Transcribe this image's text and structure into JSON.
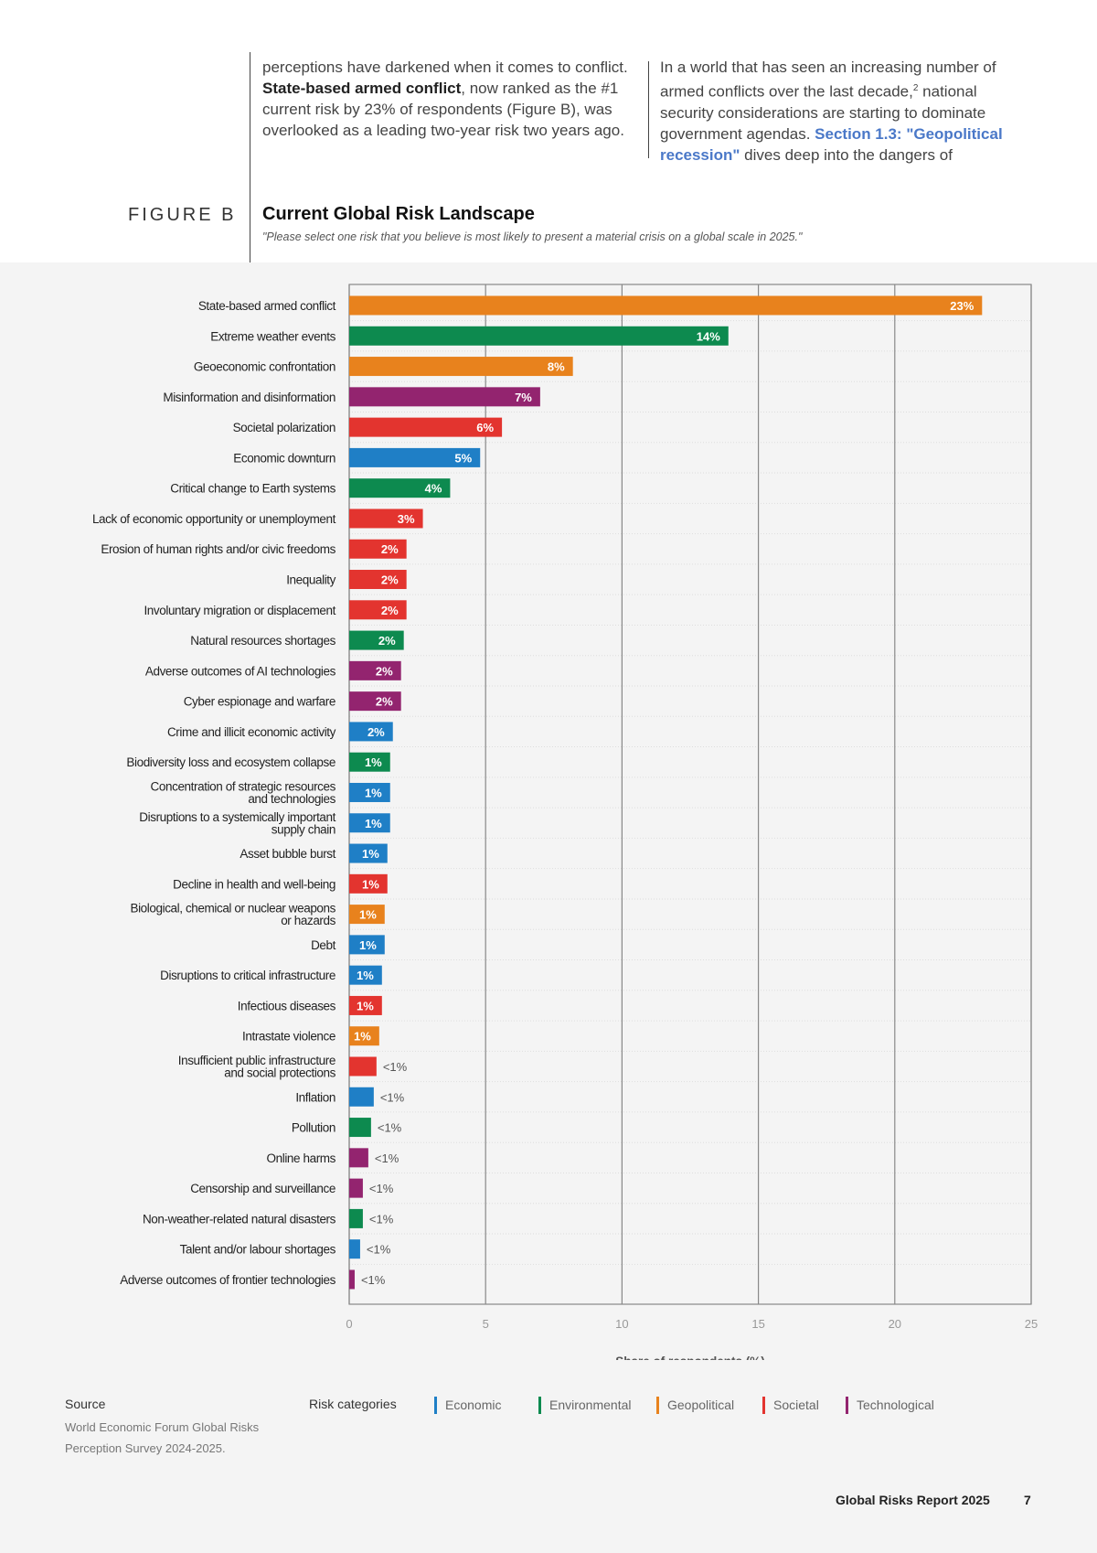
{
  "intro": {
    "left_pre": "perceptions have darkened when it comes to conflict. ",
    "left_bold": "State-based armed conflict",
    "left_post": ", now ranked as the #1 current risk by 23% of respondents (Figure B), was overlooked as a leading two-year risk two years ago.",
    "right_pre": "In a world that has seen an increasing number of armed conflicts over the last decade,",
    "right_sup": "2",
    "right_mid": " national security considerations are starting to dominate government agendas. ",
    "right_link": "Section 1.3: \"Geopolitical recession\"",
    "right_post": " dives deep into the dangers of"
  },
  "figure": {
    "label": "FIGURE B",
    "title": "Current Global Risk Landscape",
    "question": "\"Please select one risk that you believe is most likely to present a material crisis on a global scale in 2025.\""
  },
  "colors": {
    "Economic": "#1f7fc6",
    "Environmental": "#0d8a4f",
    "Geopolitical": "#e8821d",
    "Societal": "#e3342f",
    "Technological": "#93246f"
  },
  "chart_data": {
    "type": "bar",
    "orientation": "horizontal",
    "xlabel": "Share of respondents (%)",
    "xlim": [
      0,
      25
    ],
    "xticks": [
      0,
      5,
      10,
      15,
      20,
      25
    ],
    "grid": true,
    "categories": [
      [
        "State-based armed conflict"
      ],
      [
        "Extreme weather events"
      ],
      [
        "Geoeconomic confrontation"
      ],
      [
        "Misinformation and disinformation"
      ],
      [
        "Societal polarization"
      ],
      [
        "Economic downturn"
      ],
      [
        "Critical change to Earth systems"
      ],
      [
        "Lack of economic opportunity or unemployment"
      ],
      [
        "Erosion of human rights and/or civic freedoms"
      ],
      [
        "Inequality"
      ],
      [
        "Involuntary migration or displacement"
      ],
      [
        "Natural resources shortages"
      ],
      [
        "Adverse outcomes of AI technologies"
      ],
      [
        "Cyber espionage and warfare"
      ],
      [
        "Crime and illicit economic activity"
      ],
      [
        "Biodiversity loss and ecosystem collapse"
      ],
      [
        "Concentration of strategic resources",
        "and technologies"
      ],
      [
        "Disruptions to a systemically important",
        "supply chain"
      ],
      [
        "Asset bubble burst"
      ],
      [
        "Decline in health and well-being"
      ],
      [
        "Biological, chemical or nuclear weapons",
        "or hazards"
      ],
      [
        "Debt"
      ],
      [
        "Disruptions to critical infrastructure"
      ],
      [
        "Infectious diseases"
      ],
      [
        "Intrastate violence"
      ],
      [
        "Insufficient public infrastructure",
        "and social protections"
      ],
      [
        "Inflation"
      ],
      [
        "Pollution"
      ],
      [
        "Online harms"
      ],
      [
        "Censorship and surveillance"
      ],
      [
        "Non-weather-related natural disasters"
      ],
      [
        "Talent and/or labour shortages"
      ],
      [
        "Adverse outcomes of frontier technologies"
      ]
    ],
    "values": [
      23.2,
      13.9,
      8.2,
      7.0,
      5.6,
      4.8,
      3.7,
      2.7,
      2.1,
      2.1,
      2.1,
      2.0,
      1.9,
      1.9,
      1.6,
      1.5,
      1.5,
      1.5,
      1.4,
      1.4,
      1.3,
      1.3,
      1.2,
      1.2,
      1.1,
      1.0,
      0.9,
      0.8,
      0.7,
      0.5,
      0.5,
      0.4,
      0.2
    ],
    "labels": [
      "23%",
      "14%",
      "8%",
      "7%",
      "6%",
      "5%",
      "4%",
      "3%",
      "2%",
      "2%",
      "2%",
      "2%",
      "2%",
      "2%",
      "2%",
      "1%",
      "1%",
      "1%",
      "1%",
      "1%",
      "1%",
      "1%",
      "1%",
      "1%",
      "1%",
      "<1%",
      "<1%",
      "<1%",
      "<1%",
      "<1%",
      "<1%",
      "<1%",
      "<1%"
    ],
    "category_type": [
      "Geopolitical",
      "Environmental",
      "Geopolitical",
      "Technological",
      "Societal",
      "Economic",
      "Environmental",
      "Societal",
      "Societal",
      "Societal",
      "Societal",
      "Environmental",
      "Technological",
      "Technological",
      "Economic",
      "Environmental",
      "Economic",
      "Economic",
      "Economic",
      "Societal",
      "Geopolitical",
      "Economic",
      "Economic",
      "Societal",
      "Geopolitical",
      "Societal",
      "Economic",
      "Environmental",
      "Technological",
      "Technological",
      "Environmental",
      "Economic",
      "Technological"
    ],
    "legend_title": "Risk categories",
    "legend": [
      "Economic",
      "Environmental",
      "Geopolitical",
      "Societal",
      "Technological"
    ]
  },
  "source": {
    "heading": "Source",
    "line1": "World Economic Forum Global Risks",
    "line2": "Perception Survey 2024-2025."
  },
  "footer": {
    "report": "Global Risks Report 2025",
    "page": "7"
  }
}
